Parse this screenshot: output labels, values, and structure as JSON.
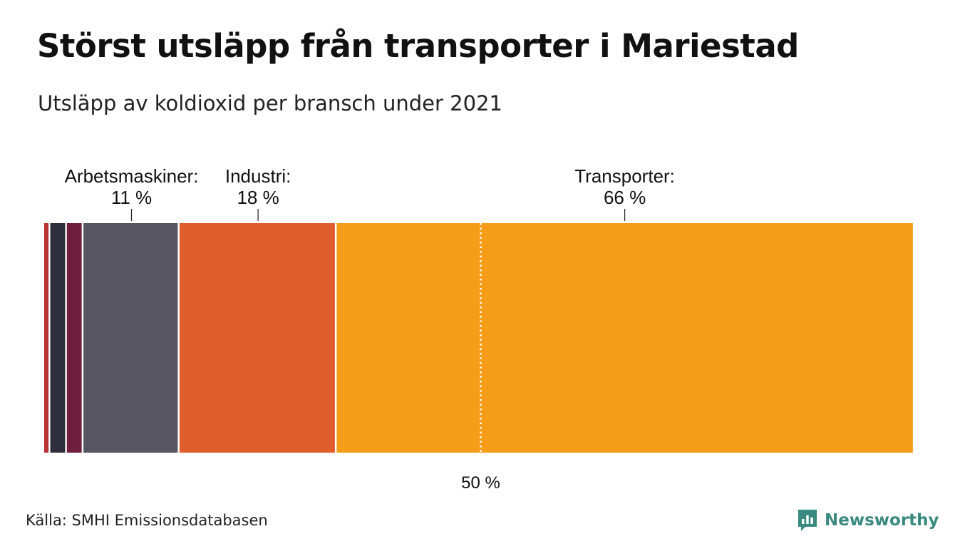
{
  "header": {
    "title": "Störst utsläpp från transporter i Mariestad",
    "subtitle": "Utsläpp av koldioxid per bransch under 2021"
  },
  "footer": {
    "source": "Källa: SMHI Emissionsdatabasen",
    "brand": "Newsworthy"
  },
  "chart_data": {
    "type": "bar",
    "stacked": true,
    "orientation": "horizontal",
    "unit": "%",
    "series": [
      {
        "name": "",
        "value": 0.7,
        "color": "#b83236"
      },
      {
        "name": "",
        "value": 1.9,
        "color": "#2e2d3c"
      },
      {
        "name": "",
        "value": 1.9,
        "color": "#6e1f3e"
      },
      {
        "name": "Arbetsmaskiner",
        "value": 11,
        "value_label": "11 %",
        "color": "#585563"
      },
      {
        "name": "Industri",
        "value": 18,
        "value_label": "18 %",
        "color": "#e05e2d"
      },
      {
        "name": "Transporter",
        "value": 66,
        "value_label": "66 %",
        "color": "#f59d19"
      }
    ],
    "xlim": [
      0,
      100
    ],
    "reference_line": {
      "value": 50,
      "label": "50 %"
    },
    "grid": false,
    "legend": "none"
  }
}
